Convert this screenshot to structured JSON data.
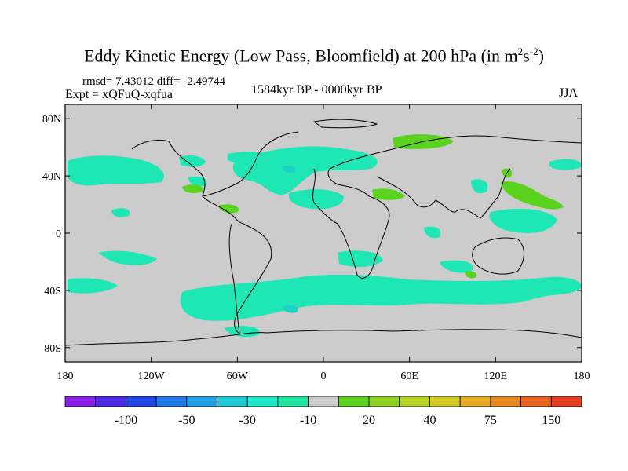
{
  "title": {
    "main": "Eddy Kinetic Energy (Low Pass, Bloomfield) at 200 hPa (in m",
    "sup1": "2",
    "mid": "s",
    "sup2": "-2",
    "end": ")"
  },
  "stats": {
    "rmsd_diff": "rmsd= 7.43012 diff= -2.49744",
    "expt": "Expt = xQFuQ-xqfua",
    "period": "1584kyr BP - 0000kyr BP",
    "season": "JJA"
  },
  "axes": {
    "lat_labels": [
      "80N",
      "40N",
      "0",
      "40S",
      "80S"
    ],
    "lat_values": [
      80,
      40,
      0,
      -40,
      -80
    ],
    "lon_labels": [
      "180",
      "120W",
      "60W",
      "0",
      "60E",
      "120E",
      "180"
    ],
    "lon_values": [
      -180,
      -120,
      -60,
      0,
      60,
      120,
      180
    ]
  },
  "colorbar": {
    "colors": [
      "#8a1ee6",
      "#5028e6",
      "#1e46e6",
      "#1e78e6",
      "#1ea0e6",
      "#1ec8d2",
      "#1ee6c8",
      "#1ee6a0",
      "#cccccc",
      "#5ad21e",
      "#8cd21e",
      "#b4d21e",
      "#d2c81e",
      "#e6aa1e",
      "#e6881e",
      "#e6641e",
      "#e63c1e"
    ],
    "labels": [
      "-100",
      "-50",
      "-30",
      "-10",
      "20",
      "40",
      "75",
      "150"
    ]
  },
  "colors": {
    "ocean_land_background": "#cccccc",
    "negative_fill": "#1ee6b4",
    "negative_core": "#19d2c8",
    "positive_fill": "#5ad21e"
  }
}
